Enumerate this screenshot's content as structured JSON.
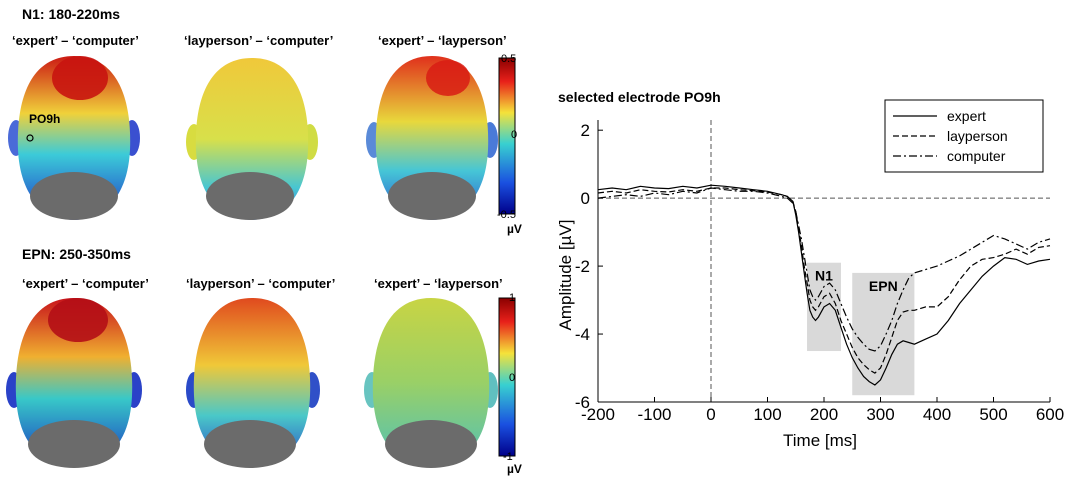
{
  "topo": {
    "sections": [
      {
        "title": "N1: 180-220ms",
        "columns": [
          "‘expert’ – ‘computer’",
          "‘layperson’ – ‘computer’",
          "‘expert’ – ‘layperson’"
        ],
        "colorbar": {
          "max": "0.5",
          "mid": "0",
          "min": "-0.5",
          "unit": "µV"
        },
        "head_colors": [
          "#d21e12",
          "#e8d33c",
          "#e8552a"
        ],
        "electrode_label": "PO9h"
      },
      {
        "title": "EPN: 250-350ms",
        "columns": [
          "‘expert’ – ‘computer’",
          "‘layperson’ – ‘computer’",
          "‘expert’ – ‘layperson’"
        ],
        "colorbar": {
          "max": "1",
          "mid": "0",
          "min": "-1",
          "unit": "µV"
        },
        "head_colors": [
          "#c8141c",
          "#e8641e",
          "#b9d346"
        ]
      }
    ]
  },
  "chart_data": {
    "type": "line",
    "title": "selected electrode PO9h",
    "xlabel": "Time [ms]",
    "ylabel": "Amplitude [µV]",
    "xlim": [
      -200,
      600
    ],
    "ylim": [
      -6,
      2.3
    ],
    "xticks": [
      -200,
      -100,
      0,
      100,
      200,
      300,
      400,
      500,
      600
    ],
    "yticks": [
      2,
      0,
      -2,
      -4,
      -6
    ],
    "legend_position": "top-right",
    "windows": [
      {
        "label": "N1",
        "x": [
          170,
          230
        ],
        "y": [
          -4.5,
          -1.9
        ]
      },
      {
        "label": "EPN",
        "x": [
          250,
          360
        ],
        "y": [
          -5.8,
          -2.2
        ]
      }
    ],
    "x": [
      -200,
      -175,
      -150,
      -125,
      -100,
      -75,
      -50,
      -25,
      0,
      25,
      50,
      75,
      100,
      125,
      135,
      145,
      150,
      155,
      160,
      165,
      170,
      175,
      180,
      185,
      190,
      200,
      210,
      220,
      230,
      240,
      250,
      260,
      270,
      280,
      290,
      300,
      310,
      320,
      330,
      340,
      350,
      360,
      380,
      400,
      420,
      440,
      460,
      480,
      500,
      520,
      540,
      560,
      580,
      600
    ],
    "series": [
      {
        "name": "expert",
        "dash": "",
        "values": [
          0.25,
          0.3,
          0.25,
          0.35,
          0.3,
          0.28,
          0.35,
          0.3,
          0.38,
          0.35,
          0.3,
          0.25,
          0.2,
          0.1,
          0.05,
          -0.1,
          -0.5,
          -1.0,
          -1.6,
          -2.2,
          -2.8,
          -3.3,
          -3.5,
          -3.6,
          -3.5,
          -3.2,
          -3.1,
          -3.3,
          -3.8,
          -4.3,
          -4.7,
          -5.0,
          -5.25,
          -5.4,
          -5.5,
          -5.35,
          -5.0,
          -4.6,
          -4.3,
          -4.2,
          -4.25,
          -4.3,
          -4.15,
          -4.0,
          -3.6,
          -3.1,
          -2.7,
          -2.3,
          -2.0,
          -1.75,
          -1.8,
          -1.95,
          -1.85,
          -1.8
        ]
      },
      {
        "name": "layperson",
        "dash": "6,3",
        "values": [
          0.15,
          0.2,
          0.15,
          0.25,
          0.2,
          0.18,
          0.25,
          0.2,
          0.3,
          0.3,
          0.25,
          0.22,
          0.18,
          0.1,
          0.05,
          -0.1,
          -0.4,
          -0.9,
          -1.4,
          -2.0,
          -2.5,
          -3.0,
          -3.2,
          -3.3,
          -3.2,
          -2.9,
          -2.8,
          -3.1,
          -3.6,
          -4.0,
          -4.4,
          -4.7,
          -4.9,
          -5.05,
          -5.15,
          -5.0,
          -4.6,
          -4.1,
          -3.6,
          -3.35,
          -3.3,
          -3.3,
          -3.2,
          -3.2,
          -2.9,
          -2.4,
          -2.0,
          -1.8,
          -1.75,
          -1.65,
          -1.5,
          -1.65,
          -1.45,
          -1.4
        ]
      },
      {
        "name": "computer",
        "dash": "8,3,2,3",
        "values": [
          0.0,
          0.05,
          0.1,
          0.05,
          0.15,
          0.1,
          0.2,
          0.15,
          0.3,
          0.25,
          0.2,
          0.2,
          0.15,
          0.05,
          0.0,
          -0.15,
          -0.4,
          -0.8,
          -1.2,
          -1.7,
          -2.2,
          -2.7,
          -2.9,
          -3.0,
          -2.9,
          -2.6,
          -2.5,
          -2.7,
          -3.1,
          -3.5,
          -3.85,
          -4.1,
          -4.3,
          -4.45,
          -4.5,
          -4.35,
          -4.0,
          -3.6,
          -3.1,
          -2.7,
          -2.35,
          -2.2,
          -2.1,
          -2.0,
          -1.85,
          -1.7,
          -1.5,
          -1.3,
          -1.1,
          -1.2,
          -1.35,
          -1.5,
          -1.3,
          -1.2
        ]
      }
    ]
  }
}
